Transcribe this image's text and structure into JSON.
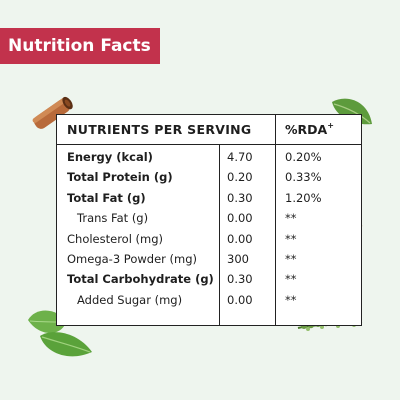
{
  "banner": {
    "title": "Nutrition Facts"
  },
  "table": {
    "header": {
      "nutrients": "NUTRIENTS PER SERVING",
      "rda": "%RDA",
      "rda_sup": "+"
    },
    "rows": [
      {
        "name": "Energy (kcal)",
        "value": "4.70",
        "rda": "0.20%"
      },
      {
        "name": "Total Protein (g)",
        "value": "0.20",
        "rda": "0.33%"
      },
      {
        "name": "Total Fat (g)",
        "value": "0.30",
        "rda": "1.20%"
      },
      {
        "name": "Trans Fat (g)",
        "value": "0.00",
        "rda": "**"
      },
      {
        "name": "Cholesterol (mg)",
        "value": "0.00",
        "rda": "**"
      },
      {
        "name": "Omega-3 Powder (mg)",
        "value": "300",
        "rda": "**"
      },
      {
        "name": "Total Carbohydrate (g)",
        "value": "0.30",
        "rda": "**"
      },
      {
        "name": "Added Sugar (mg)",
        "value": "0.00",
        "rda": "**"
      }
    ]
  },
  "colors": {
    "banner": "#c2324c",
    "background": "#eef5ee",
    "border": "#222222"
  },
  "icons": [
    "cinnamon-stick-icon",
    "leaf-icon",
    "herb-sprig-icon"
  ]
}
